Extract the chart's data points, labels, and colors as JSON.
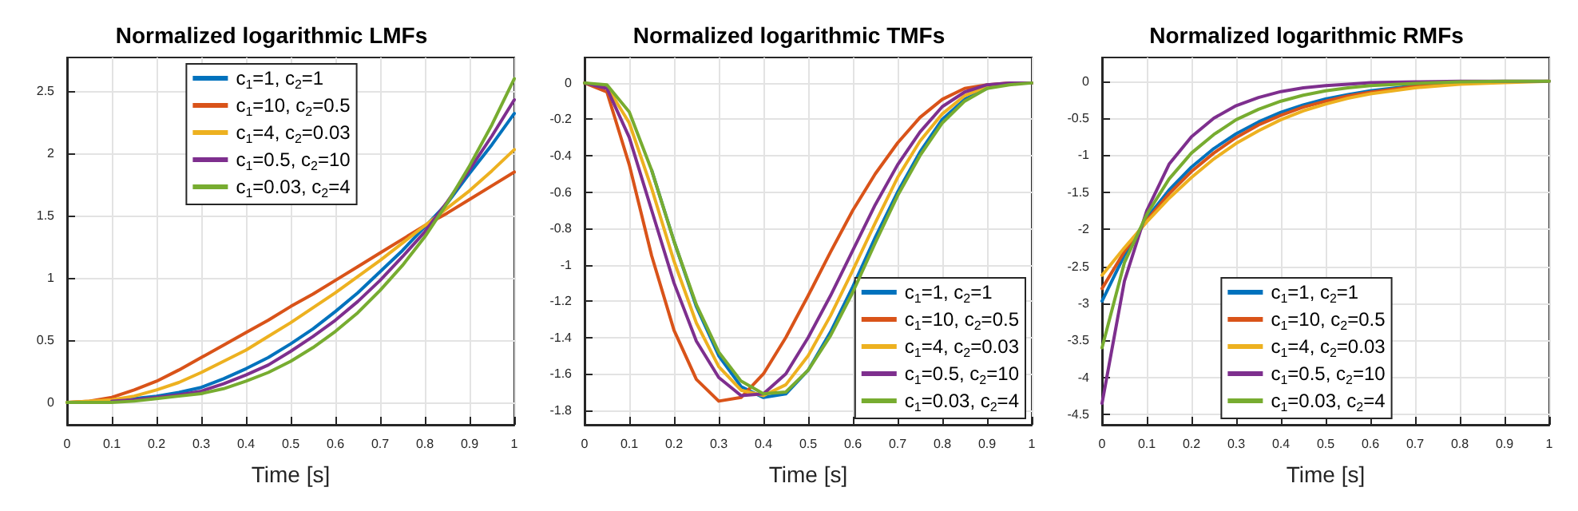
{
  "chart_data": [
    {
      "type": "line",
      "title": "Normalized logarithmic LMFs",
      "xlabel": "Time [s]",
      "xlim": [
        0,
        1
      ],
      "ylim": [
        -0.18,
        2.77
      ],
      "xticks": [
        0,
        0.1,
        0.2,
        0.3,
        0.4,
        0.5,
        0.6,
        0.7,
        0.8,
        0.9,
        1
      ],
      "yticks": [
        0,
        0.5,
        1,
        1.5,
        2,
        2.5
      ],
      "grid": true,
      "legend": "top",
      "marker": "none",
      "line_style": "solid",
      "x": [
        0,
        0.05,
        0.1,
        0.15,
        0.2,
        0.25,
        0.3,
        0.35,
        0.4,
        0.45,
        0.5,
        0.55,
        0.6,
        0.65,
        0.7,
        0.75,
        0.8,
        0.85,
        0.9,
        0.95,
        1
      ],
      "series": [
        {
          "name": "c$_{1}$=1, c$_{2}$=1",
          "color": "#0072bd",
          "values": [
            null,
            null,
            0.01,
            0.03,
            0.05,
            0.08,
            0.12,
            0.19,
            0.27,
            0.36,
            0.47,
            0.59,
            0.73,
            0.88,
            1.05,
            1.22,
            1.41,
            1.6,
            1.84,
            2.07,
            2.32
          ]
        },
        {
          "name": "c$_{1}$=10, c$_{2}$=0.5",
          "color": "#d95319",
          "values": [
            0,
            0.01,
            0.04,
            0.1,
            0.17,
            0.26,
            0.36,
            0.46,
            0.56,
            0.66,
            0.77,
            0.87,
            0.98,
            1.09,
            1.2,
            1.31,
            1.42,
            1.52,
            1.63,
            1.74,
            1.85
          ]
        },
        {
          "name": "c$_{1}$=4, c$_{2}$=0.03",
          "color": "#edb120",
          "values": [
            0,
            0.01,
            0.02,
            0.05,
            0.1,
            0.16,
            0.24,
            0.33,
            0.42,
            0.53,
            0.64,
            0.76,
            0.88,
            1.01,
            1.14,
            1.28,
            1.42,
            1.56,
            1.7,
            1.86,
            2.03
          ]
        },
        {
          "name": "c$_{1}$=0.5, c$_{2}$=10",
          "color": "#7e2f8e",
          "values": [
            null,
            null,
            0.01,
            0.02,
            0.04,
            0.06,
            0.09,
            0.15,
            0.22,
            0.3,
            0.41,
            0.53,
            0.66,
            0.81,
            0.98,
            1.17,
            1.37,
            1.61,
            1.87,
            2.14,
            2.43
          ]
        },
        {
          "name": "c$_{1}$=0.03, c$_{2}$=4",
          "color": "#77ac30",
          "values": [
            0,
            0,
            0,
            0.01,
            0.03,
            0.05,
            0.07,
            0.11,
            0.17,
            0.24,
            0.33,
            0.44,
            0.57,
            0.72,
            0.9,
            1.1,
            1.33,
            1.6,
            1.9,
            2.23,
            2.6
          ]
        }
      ]
    },
    {
      "type": "line",
      "title": "Normalized logarithmic TMFs",
      "xlabel": "Time [s]",
      "xlim": [
        0,
        1
      ],
      "ylim": [
        -1.88,
        0.14
      ],
      "xticks": [
        0,
        0.1,
        0.2,
        0.3,
        0.4,
        0.5,
        0.6,
        0.7,
        0.8,
        0.9,
        1
      ],
      "yticks": [
        -1.8,
        -1.6,
        -1.4,
        -1.2,
        -1,
        -0.8,
        -0.6,
        -0.4,
        -0.2,
        0
      ],
      "grid": true,
      "legend": "bottom right",
      "marker": "none",
      "line_style": "solid",
      "x": [
        0,
        0.05,
        0.1,
        0.15,
        0.2,
        0.25,
        0.3,
        0.35,
        0.4,
        0.45,
        0.5,
        0.55,
        0.6,
        0.65,
        0.7,
        0.75,
        0.8,
        0.85,
        0.9,
        0.95,
        1
      ],
      "series": [
        {
          "name": "c$_{1}$=1, c$_{2}$=1",
          "color": "#0072bd",
          "values": [
            null,
            null,
            null,
            -0.48,
            -0.87,
            -1.23,
            -1.5,
            -1.67,
            -1.73,
            -1.71,
            -1.58,
            -1.37,
            -1.12,
            -0.85,
            -0.6,
            -0.38,
            -0.2,
            -0.09,
            -0.03,
            null,
            null
          ]
        },
        {
          "name": "c$_{1}$=10, c$_{2}$=0.5",
          "color": "#d95319",
          "values": [
            0,
            -0.05,
            -0.45,
            -0.95,
            -1.36,
            -1.63,
            -1.75,
            -1.73,
            -1.6,
            -1.4,
            -1.17,
            -0.93,
            -0.7,
            -0.5,
            -0.33,
            -0.19,
            -0.09,
            -0.03,
            -0.01,
            0,
            0
          ]
        },
        {
          "name": "c$_{1}$=4, c$_{2}$=0.03",
          "color": "#edb120",
          "values": [
            0,
            -0.02,
            -0.22,
            -0.58,
            -0.98,
            -1.32,
            -1.56,
            -1.69,
            -1.72,
            -1.66,
            -1.5,
            -1.28,
            -1.03,
            -0.77,
            -0.52,
            -0.32,
            -0.17,
            -0.07,
            -0.02,
            0,
            0
          ]
        },
        {
          "name": "c$_{1}$=0.5, c$_{2}$=10",
          "color": "#7e2f8e",
          "values": [
            0,
            -0.03,
            -0.3,
            -0.7,
            -1.1,
            -1.42,
            -1.62,
            -1.72,
            -1.71,
            -1.6,
            -1.4,
            -1.17,
            -0.92,
            -0.67,
            -0.45,
            -0.27,
            -0.13,
            -0.05,
            -0.01,
            0,
            0
          ]
        },
        {
          "name": "c$_{1}$=0.03, c$_{2}$=4",
          "color": "#77ac30",
          "values": [
            0,
            -0.01,
            -0.16,
            -0.48,
            -0.87,
            -1.22,
            -1.48,
            -1.64,
            -1.71,
            -1.7,
            -1.58,
            -1.39,
            -1.15,
            -0.88,
            -0.62,
            -0.4,
            -0.22,
            -0.1,
            -0.03,
            -0.01,
            0
          ]
        }
      ]
    },
    {
      "type": "line",
      "title": "Normalized logarithmic RMFs",
      "xlabel": "Time [s]",
      "xlim": [
        0,
        1
      ],
      "ylim": [
        -4.64,
        0.32
      ],
      "xticks": [
        0,
        0.1,
        0.2,
        0.3,
        0.4,
        0.5,
        0.6,
        0.7,
        0.8,
        0.9,
        1
      ],
      "yticks": [
        -4.5,
        -4,
        -3.5,
        -3,
        -2.5,
        -2,
        -1.5,
        -1,
        -0.5,
        0
      ],
      "grid": true,
      "legend": "bottom",
      "marker": "none",
      "line_style": "solid",
      "x": [
        0,
        0.05,
        0.1,
        0.15,
        0.2,
        0.25,
        0.3,
        0.35,
        0.4,
        0.45,
        0.5,
        0.55,
        0.6,
        0.7,
        0.8,
        0.9,
        1
      ],
      "series": [
        {
          "name": "c$_{1}$=1, c$_{2}$=1",
          "color": "#0072bd",
          "values": [
            -2.97,
            -2.35,
            -1.85,
            -1.47,
            -1.16,
            -0.91,
            -0.71,
            -0.55,
            -0.42,
            -0.32,
            -0.24,
            -0.18,
            -0.13,
            -0.06,
            -0.03,
            null,
            null
          ]
        },
        {
          "name": "c$_{1}$=10, c$_{2}$=0.5",
          "color": "#d95319",
          "values": [
            -2.8,
            -2.3,
            -1.88,
            -1.52,
            -1.22,
            -0.97,
            -0.76,
            -0.59,
            -0.46,
            -0.35,
            -0.27,
            -0.2,
            -0.15,
            -0.07,
            -0.03,
            null,
            null
          ]
        },
        {
          "name": "c$_{1}$=4, c$_{2}$=0.03",
          "color": "#edb120",
          "values": [
            -2.62,
            -2.25,
            -1.9,
            -1.58,
            -1.3,
            -1.05,
            -0.84,
            -0.67,
            -0.52,
            -0.4,
            -0.31,
            -0.23,
            -0.17,
            -0.09,
            -0.04,
            -0.02,
            0
          ]
        },
        {
          "name": "c$_{1}$=0.5, c$_{2}$=10",
          "color": "#7e2f8e",
          "values": [
            -4.35,
            -2.7,
            -1.75,
            -1.12,
            -0.75,
            -0.5,
            -0.33,
            -0.22,
            -0.14,
            -0.09,
            -0.06,
            -0.04,
            -0.02,
            -0.01,
            0,
            0,
            0
          ]
        },
        {
          "name": "c$_{1}$=0.03, c$_{2}$=4",
          "color": "#77ac30",
          "values": [
            -3.6,
            -2.45,
            -1.8,
            -1.32,
            -0.97,
            -0.72,
            -0.52,
            -0.38,
            -0.27,
            -0.19,
            -0.13,
            -0.09,
            -0.06,
            -0.03,
            -0.01,
            0,
            0
          ]
        }
      ]
    }
  ]
}
